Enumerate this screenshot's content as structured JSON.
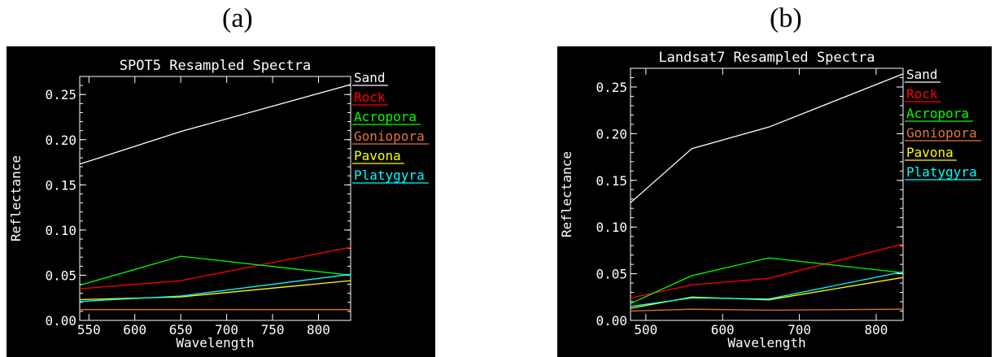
{
  "panels": [
    {
      "label": "(a)"
    },
    {
      "label": "(b)"
    }
  ],
  "chart_data": [
    {
      "type": "line",
      "title": "SPOT5 Resampled Spectra",
      "xlabel": "Wavelength",
      "ylabel": "Reflectance",
      "xlim": [
        540,
        835
      ],
      "ylim": [
        0.0,
        0.27
      ],
      "xticks": [
        550,
        600,
        650,
        700,
        750,
        800
      ],
      "yticks": [
        "0.00",
        "0.05",
        "0.10",
        "0.15",
        "0.20",
        "0.25"
      ],
      "x": [
        540,
        650,
        835
      ],
      "legend_position": "right",
      "series": [
        {
          "name": "Sand",
          "color": "#ffffff",
          "values": [
            0.173,
            0.209,
            0.261
          ]
        },
        {
          "name": "Rock",
          "color": "#ff0000",
          "values": [
            0.035,
            0.044,
            0.081
          ]
        },
        {
          "name": "Acropora",
          "color": "#00ff00",
          "values": [
            0.039,
            0.071,
            0.05
          ]
        },
        {
          "name": "Goniopora",
          "color": "#e2753a",
          "values": [
            0.012,
            0.012,
            0.012
          ]
        },
        {
          "name": "Pavona",
          "color": "#ffff00",
          "values": [
            0.023,
            0.026,
            0.044
          ]
        },
        {
          "name": "Platygyra",
          "color": "#00ffff",
          "values": [
            0.021,
            0.027,
            0.051
          ]
        }
      ]
    },
    {
      "type": "line",
      "title": "Landsat7 Resampled Spectra",
      "xlabel": "Wavelength",
      "ylabel": "Reflectance",
      "xlim": [
        480,
        835
      ],
      "ylim": [
        0.0,
        0.27
      ],
      "xticks": [
        500,
        600,
        700,
        800
      ],
      "yticks": [
        "0.00",
        "0.05",
        "0.10",
        "0.15",
        "0.20",
        "0.25"
      ],
      "x": [
        480,
        560,
        660,
        835
      ],
      "legend_position": "right",
      "series": [
        {
          "name": "Sand",
          "color": "#ffffff",
          "values": [
            0.126,
            0.184,
            0.207,
            0.264
          ]
        },
        {
          "name": "Rock",
          "color": "#ff0000",
          "values": [
            0.024,
            0.038,
            0.045,
            0.082
          ]
        },
        {
          "name": "Acropora",
          "color": "#00ff00",
          "values": [
            0.018,
            0.048,
            0.067,
            0.051
          ]
        },
        {
          "name": "Goniopora",
          "color": "#e2753a",
          "values": [
            0.01,
            0.012,
            0.011,
            0.012
          ]
        },
        {
          "name": "Pavona",
          "color": "#ffff00",
          "values": [
            0.013,
            0.025,
            0.022,
            0.046
          ]
        },
        {
          "name": "Platygyra",
          "color": "#00ffff",
          "values": [
            0.015,
            0.024,
            0.023,
            0.052
          ]
        }
      ]
    }
  ]
}
